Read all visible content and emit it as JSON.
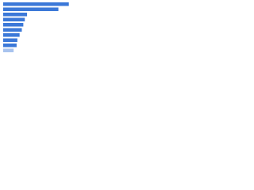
{
  "chart_data": {
    "type": "hbar",
    "categories": [
      null,
      null,
      null,
      null,
      null,
      null,
      null,
      null,
      null,
      null
    ],
    "values": [
      88,
      74,
      32,
      29,
      27,
      25,
      22,
      19,
      18,
      14
    ],
    "colors": [
      "#3b78d8",
      "#3b78d8",
      "#3b78d8",
      "#3b78d8",
      "#3b78d8",
      "#3b78d8",
      "#3b78d8",
      "#3b78d8",
      "#3b78d8",
      "#a8c3ee"
    ],
    "xlim": [
      0,
      100
    ]
  }
}
